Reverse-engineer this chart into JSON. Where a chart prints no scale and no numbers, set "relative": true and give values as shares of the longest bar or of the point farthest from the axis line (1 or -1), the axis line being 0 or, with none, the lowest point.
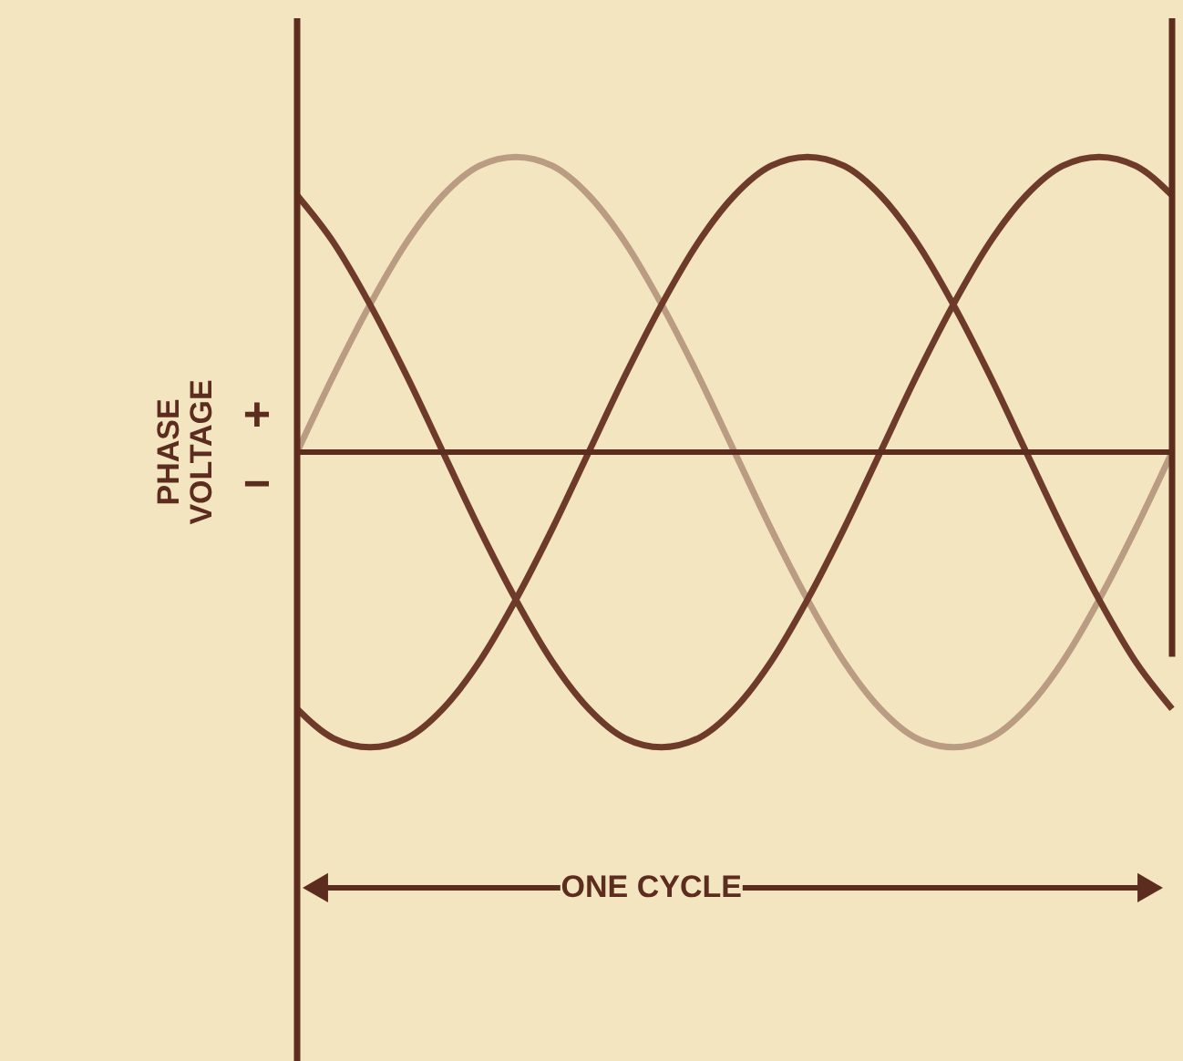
{
  "chart_data": {
    "type": "line",
    "relative": true,
    "ylabel": "PHASE VOLTAGE",
    "line_style": "solid",
    "marker": "none",
    "categories": [
      null,
      null,
      null,
      null,
      null,
      null,
      null,
      null,
      null,
      null,
      null,
      null,
      null,
      null,
      null,
      null,
      null,
      null,
      null,
      null,
      null,
      null,
      null,
      null,
      null
    ],
    "series": [
      {
        "color": "#b99c82",
        "values": [
          0,
          0.26,
          0.5,
          0.71,
          0.87,
          0.97,
          1,
          0.97,
          0.87,
          0.71,
          0.5,
          0.26,
          0,
          -0.26,
          -0.5,
          -0.71,
          -0.87,
          -0.97,
          -1,
          -0.97,
          -0.87,
          -0.71,
          -0.5,
          -0.26,
          0
        ]
      },
      {
        "color": "#6e3b2b",
        "values": [
          0.87,
          0.71,
          0.5,
          0.26,
          0,
          -0.26,
          -0.5,
          -0.71,
          -0.87,
          -0.97,
          -1,
          -0.97,
          -0.87,
          -0.71,
          -0.5,
          -0.26,
          0,
          0.26,
          0.5,
          0.71,
          0.87,
          0.97,
          1,
          0.97,
          0.87
        ]
      },
      {
        "color": "#6e3b2b",
        "values": [
          -0.87,
          -0.97,
          -1,
          -0.97,
          -0.87,
          -0.71,
          -0.5,
          -0.26,
          0,
          0.26,
          0.5,
          0.71,
          0.87,
          0.97,
          1,
          0.97,
          0.87,
          0.71,
          0.5,
          0.26,
          0,
          -0.26,
          -0.5,
          -0.71,
          -0.87
        ]
      }
    ],
    "annotations": [
      "+",
      "−",
      "ONE CYCLE"
    ]
  }
}
